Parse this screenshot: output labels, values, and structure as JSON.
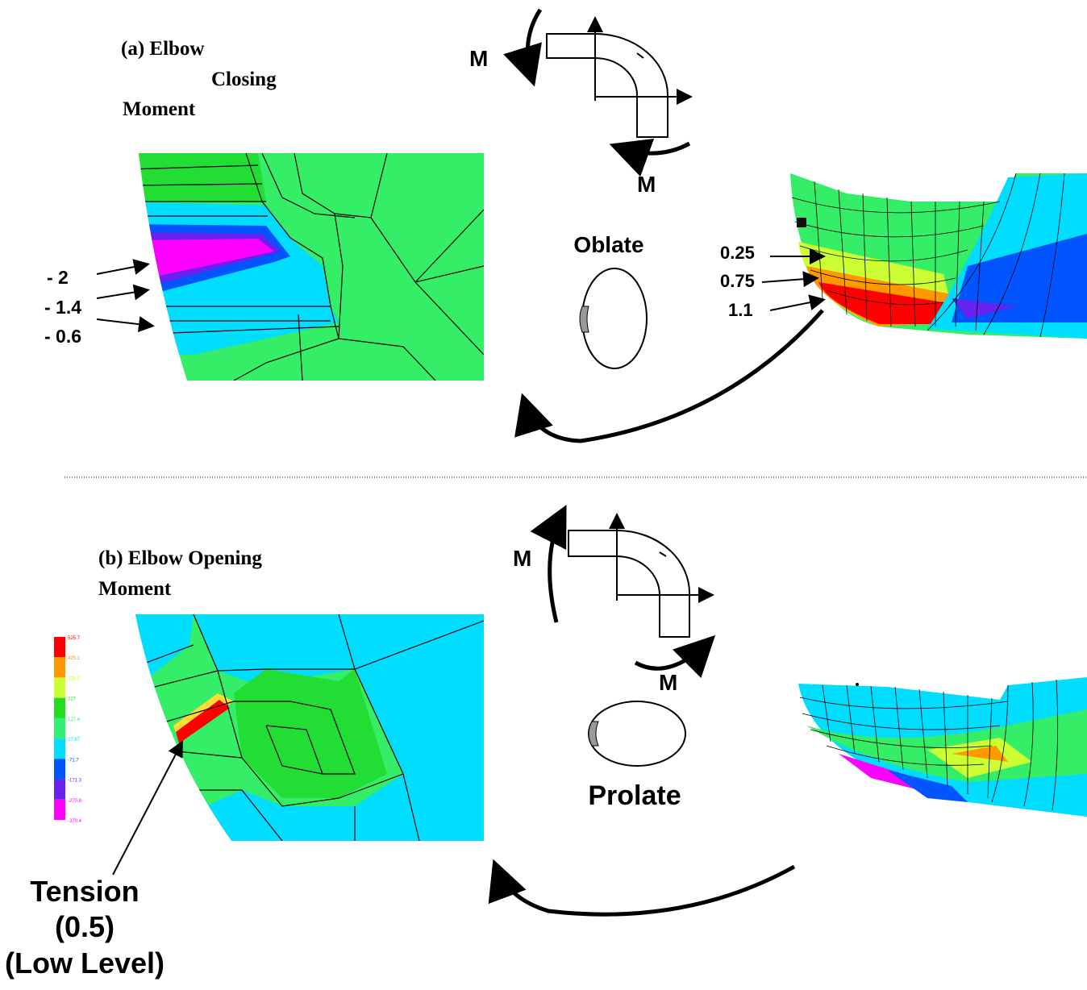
{
  "panel_a": {
    "title": [
      "(a) Elbow",
      "Closing",
      "Moment"
    ],
    "moment_labels": [
      "M",
      "M"
    ],
    "shape": "Oblate",
    "contour_labels": [
      "- 2",
      "- 1.4",
      "- 0.6"
    ],
    "shell_labels": [
      "0.25",
      "0.75",
      "1.1"
    ]
  },
  "panel_b": {
    "title": [
      "(b) Elbow Opening",
      "Moment"
    ],
    "moment_labels": [
      "M",
      "M"
    ],
    "shape": "Prolate",
    "legend": {
      "levels": [
        525.7,
        425.1,
        326.5,
        227,
        127.4,
        27.87,
        -71.7,
        -171.3,
        -270.8,
        -370.4
      ],
      "colors": [
        "#ff0000",
        "#ff9900",
        "#ccff33",
        "#22dd22",
        "#33ee77",
        "#00ddff",
        "#0055ff",
        "#6622ee",
        "#ff00ff"
      ]
    },
    "annotation": [
      "Tension",
      "(0.5)",
      "(Low Level)"
    ]
  }
}
